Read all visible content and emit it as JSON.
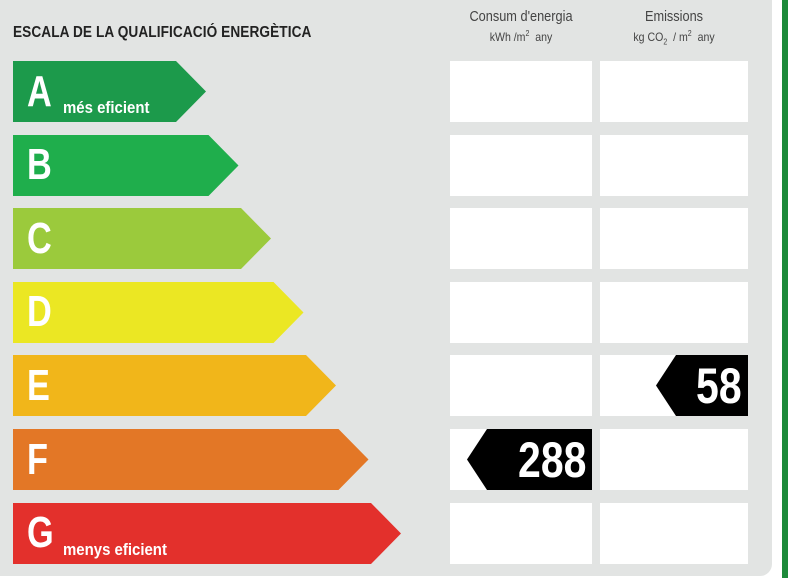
{
  "title": "ESCALA DE LA QUALIFICACIÓ ENERGÈTICA",
  "columns": {
    "consum": {
      "label": "Consum d'energia",
      "unit_kwh": "kWh /m",
      "unit_exp": "2",
      "unit_any": "  any"
    },
    "emissions": {
      "label": "Emissions",
      "unit_kg": "kg CO",
      "unit_sub": "2",
      "unit_mid": "  / m",
      "unit_exp": "2",
      "unit_any": "  any"
    }
  },
  "scale": [
    {
      "letter": "A",
      "color": "#1c9a4b",
      "caption": "més eficient"
    },
    {
      "letter": "B",
      "color": "#1fae4c",
      "caption": ""
    },
    {
      "letter": "C",
      "color": "#9bca3c",
      "caption": ""
    },
    {
      "letter": "D",
      "color": "#ebe723",
      "caption": ""
    },
    {
      "letter": "E",
      "color": "#f1b61a",
      "caption": ""
    },
    {
      "letter": "F",
      "color": "#e37726",
      "caption": ""
    },
    {
      "letter": "G",
      "color": "#e3302c",
      "caption": "menys eficient"
    }
  ],
  "chart_data": {
    "type": "table",
    "title": "ESCALA DE LA QUALIFICACIÓ ENERGÈTICA",
    "columns": [
      "Consum d'energia (kWh/m² any)",
      "Emissions (kg CO₂/m² any)"
    ],
    "consum_energia": {
      "value": 288,
      "rating": "F"
    },
    "emissions": {
      "value": 58,
      "rating": "E"
    }
  }
}
